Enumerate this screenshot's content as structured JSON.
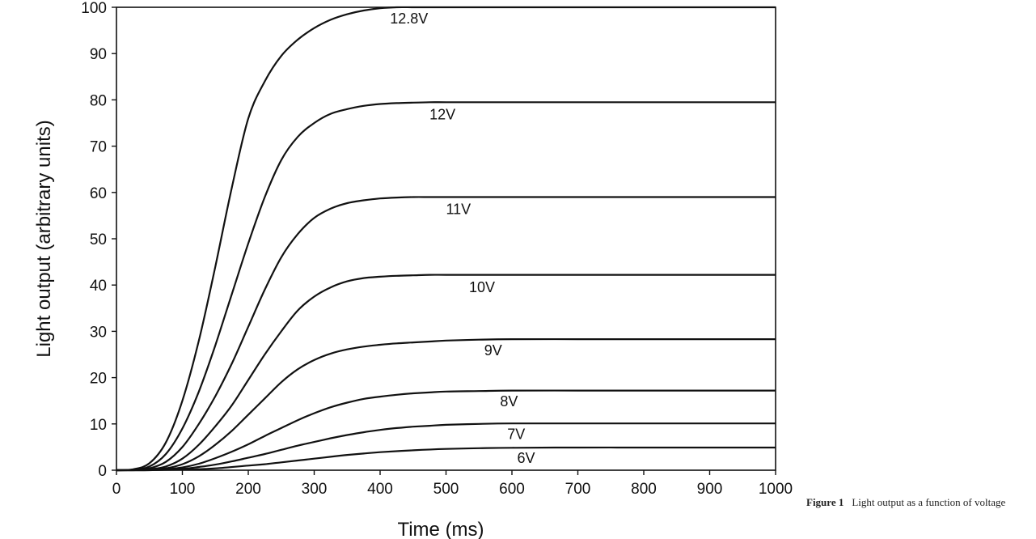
{
  "caption": {
    "figure_label": "Figure 1",
    "text": "Light output as a function of voltage"
  },
  "chart_data": {
    "type": "line",
    "xlabel": "Time (ms)",
    "ylabel": "Light output (arbitrary units)",
    "xlim": [
      0,
      1000
    ],
    "ylim": [
      0,
      100
    ],
    "xticks": [
      0,
      100,
      200,
      300,
      400,
      500,
      600,
      700,
      800,
      900,
      1000
    ],
    "yticks": [
      0,
      10,
      20,
      30,
      40,
      50,
      60,
      70,
      80,
      90,
      100
    ],
    "grid": false,
    "series": [
      {
        "name": "12.8V",
        "x": [
          0,
          25,
          50,
          75,
          100,
          125,
          150,
          175,
          200,
          225,
          250,
          275,
          300,
          325,
          350,
          375,
          400,
          425,
          450,
          475,
          500,
          550,
          600,
          700,
          800,
          900,
          1000
        ],
        "y": [
          0,
          0.2,
          1.5,
          6,
          15,
          28,
          44,
          61,
          76,
          84,
          89.5,
          93,
          95.5,
          97.3,
          98.5,
          99.3,
          99.8,
          100,
          100,
          100,
          100,
          100,
          100,
          100,
          100,
          100,
          100
        ]
      },
      {
        "name": "12V",
        "x": [
          0,
          25,
          50,
          75,
          100,
          125,
          150,
          175,
          200,
          225,
          250,
          275,
          300,
          325,
          350,
          375,
          400,
          425,
          450,
          475,
          500,
          550,
          600,
          700,
          800,
          900,
          1000
        ],
        "y": [
          0,
          0.1,
          0.8,
          3.5,
          9,
          17,
          27,
          38,
          49,
          59,
          67,
          72,
          75,
          77,
          78,
          78.7,
          79.1,
          79.3,
          79.4,
          79.5,
          79.5,
          79.5,
          79.5,
          79.5,
          79.5,
          79.5,
          79.5
        ]
      },
      {
        "name": "11V",
        "x": [
          0,
          25,
          50,
          75,
          100,
          125,
          150,
          175,
          200,
          225,
          250,
          275,
          300,
          325,
          350,
          375,
          400,
          425,
          450,
          475,
          500,
          550,
          600,
          700,
          800,
          900,
          1000
        ],
        "y": [
          0,
          0.05,
          0.4,
          1.8,
          5,
          10,
          16,
          23,
          31,
          39,
          46,
          51,
          54.5,
          56.5,
          57.7,
          58.3,
          58.7,
          58.9,
          59,
          59,
          59,
          59,
          59,
          59,
          59,
          59,
          59
        ]
      },
      {
        "name": "10V",
        "x": [
          0,
          25,
          50,
          75,
          100,
          125,
          150,
          175,
          200,
          225,
          250,
          275,
          300,
          325,
          350,
          375,
          400,
          425,
          450,
          475,
          500,
          550,
          600,
          700,
          800,
          900,
          1000
        ],
        "y": [
          0,
          0,
          0.2,
          0.8,
          2.5,
          5.5,
          9.5,
          14,
          19.5,
          25,
          30,
          34.5,
          37.5,
          39.5,
          40.8,
          41.5,
          41.8,
          42,
          42.1,
          42.2,
          42.2,
          42.2,
          42.2,
          42.2,
          42.2,
          42.2,
          42.2
        ]
      },
      {
        "name": "9V",
        "x": [
          0,
          50,
          75,
          100,
          125,
          150,
          175,
          200,
          225,
          250,
          275,
          300,
          325,
          350,
          375,
          400,
          425,
          450,
          475,
          500,
          550,
          600,
          700,
          800,
          900,
          1000
        ],
        "y": [
          0,
          0.1,
          0.4,
          1.3,
          3,
          5.5,
          8.5,
          12,
          15.5,
          19,
          21.8,
          23.8,
          25.2,
          26.1,
          26.7,
          27.1,
          27.4,
          27.6,
          27.8,
          28,
          28.2,
          28.3,
          28.3,
          28.3,
          28.3,
          28.3
        ]
      },
      {
        "name": "8V",
        "x": [
          0,
          50,
          75,
          100,
          125,
          150,
          175,
          200,
          225,
          250,
          275,
          300,
          325,
          350,
          375,
          400,
          425,
          450,
          475,
          500,
          550,
          600,
          700,
          800,
          900,
          1000
        ],
        "y": [
          0,
          0.05,
          0.2,
          0.6,
          1.4,
          2.6,
          4,
          5.6,
          7.4,
          9.1,
          10.8,
          12.3,
          13.6,
          14.6,
          15.4,
          15.9,
          16.3,
          16.6,
          16.8,
          17,
          17.1,
          17.2,
          17.2,
          17.2,
          17.2,
          17.2
        ]
      },
      {
        "name": "7V",
        "x": [
          0,
          50,
          100,
          125,
          150,
          175,
          200,
          225,
          250,
          275,
          300,
          325,
          350,
          375,
          400,
          425,
          450,
          475,
          500,
          550,
          600,
          700,
          800,
          900,
          1000
        ],
        "y": [
          0,
          0,
          0.3,
          0.7,
          1.2,
          1.9,
          2.7,
          3.5,
          4.4,
          5.3,
          6.1,
          6.9,
          7.6,
          8.2,
          8.7,
          9.1,
          9.4,
          9.6,
          9.8,
          10,
          10.1,
          10.1,
          10.1,
          10.1,
          10.1
        ]
      },
      {
        "name": "6V",
        "x": [
          0,
          100,
          150,
          200,
          225,
          250,
          275,
          300,
          325,
          350,
          375,
          400,
          450,
          500,
          550,
          600,
          700,
          800,
          900,
          1000
        ],
        "y": [
          0,
          0.1,
          0.4,
          1,
          1.3,
          1.7,
          2.1,
          2.5,
          2.9,
          3.3,
          3.6,
          3.9,
          4.3,
          4.6,
          4.75,
          4.85,
          4.9,
          4.9,
          4.9,
          4.9
        ]
      }
    ],
    "series_labels": [
      {
        "text": "12.8V",
        "x": 415,
        "y": 96.5
      },
      {
        "text": "12V",
        "x": 475,
        "y": 75.8
      },
      {
        "text": "11V",
        "x": 500,
        "y": 55.3
      },
      {
        "text": "10V",
        "x": 535,
        "y": 38.5
      },
      {
        "text": "9V",
        "x": 558,
        "y": 24.8
      },
      {
        "text": "8V",
        "x": 582,
        "y": 13.8
      },
      {
        "text": "7V",
        "x": 593,
        "y": 6.7
      },
      {
        "text": "6V",
        "x": 608,
        "y": 1.6
      }
    ]
  }
}
